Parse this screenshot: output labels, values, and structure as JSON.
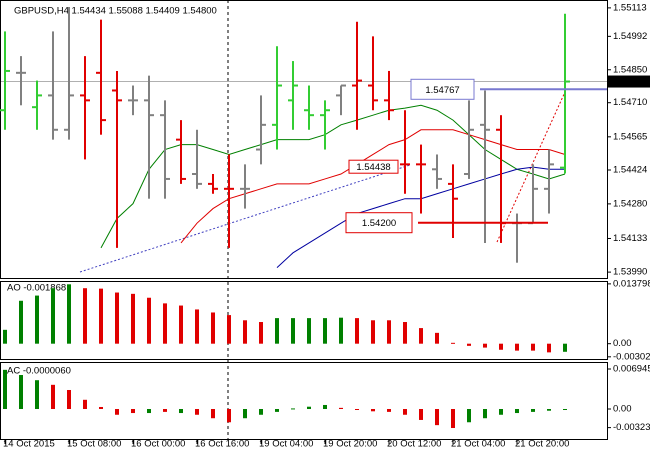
{
  "chart_data": [
    {
      "type": "ohlc",
      "title": "GBPUSD,H4  1.54434 1.55088 1.54409 1.54800",
      "ylim": [
        1.53965,
        1.55138
      ],
      "yticks": [
        1.55113,
        1.54992,
        {
          "value": 1.5485,
          "label": "1.54850"
        },
        {
          "value": 1.5471,
          "label": "1.54710"
        },
        1.54565,
        1.54424,
        {
          "value": 1.5428,
          "label": "1.54280"
        },
        1.54133,
        {
          "value": 1.5399,
          "label": "1.53990"
        }
      ],
      "last_price": {
        "value": 1.548,
        "label": "1.54800"
      },
      "open": [
        1.54678,
        1.54837,
        1.54691,
        1.54741,
        1.54595,
        1.54741,
        1.54837,
        1.54762,
        1.5472,
        1.5472,
        1.54657,
        1.54553,
        1.54407,
        1.54365,
        1.54344,
        1.54344,
        1.54511,
        1.54616,
        1.5472,
        1.54678,
        1.54657,
        1.54741,
        1.54783,
        1.54783,
        1.5472,
        1.54448,
        1.54448,
        1.54427,
        1.54365,
        1.54407,
        1.54616,
        1.54595,
        1.54198,
        1.54198,
        1.54344,
        1.54434
      ],
      "high": [
        1.55013,
        1.54908,
        1.54804,
        1.55013,
        1.55117,
        1.54908,
        1.55063,
        1.54845,
        1.54783,
        1.54825,
        1.5472,
        1.54636,
        1.54595,
        1.54407,
        1.5449,
        1.54448,
        1.54741,
        1.5495,
        1.54887,
        1.54783,
        1.5472,
        1.54783,
        1.55054,
        1.54992,
        1.54845,
        1.54678,
        1.54532,
        1.5449,
        1.54448,
        1.5472,
        1.54762,
        1.54657,
        1.54239,
        1.54448,
        1.54511,
        1.55088
      ],
      "low": [
        1.54595,
        1.54699,
        1.54595,
        1.54553,
        1.54553,
        1.54469,
        1.54574,
        1.54093,
        1.54657,
        1.54302,
        1.54302,
        1.54365,
        1.54344,
        1.54323,
        1.54093,
        1.5426,
        1.54448,
        1.54511,
        1.54595,
        1.54595,
        1.54511,
        1.54657,
        1.54595,
        1.54678,
        1.54636,
        1.54323,
        1.54239,
        1.54344,
        1.54135,
        1.54386,
        1.54114,
        1.54114,
        1.5403,
        1.54198,
        1.54239,
        1.54409
      ],
      "close": [
        1.54845,
        1.54837,
        1.54741,
        1.54595,
        1.54741,
        1.5472,
        1.54636,
        1.5472,
        1.5472,
        1.54657,
        1.54386,
        1.54386,
        1.54365,
        1.54344,
        1.54344,
        1.54344,
        1.54616,
        1.54783,
        1.54783,
        1.54657,
        1.54678,
        1.54783,
        1.54804,
        1.5472,
        1.54678,
        1.54448,
        1.54448,
        1.54386,
        1.54302,
        1.54595,
        1.54595,
        1.54198,
        1.54198,
        1.54344,
        1.54448,
        1.548
      ],
      "colors": [
        "#32cd32",
        "#808080",
        "#32cd32",
        "#808080",
        "#808080",
        "#e00000",
        "#e00000",
        "#e00000",
        "#808080",
        "#808080",
        "#808080",
        "#e00000",
        "#808080",
        "#e00000",
        "#e00000",
        "#808080",
        "#808080",
        "#32cd32",
        "#32cd32",
        "#32cd32",
        "#32cd32",
        "#808080",
        "#e00000",
        "#e00000",
        "#e00000",
        "#e00000",
        "#e00000",
        "#808080",
        "#e00000",
        "#808080",
        "#808080",
        "#e00000",
        "#808080",
        "#808080",
        "#808080",
        "#32cd32"
      ],
      "ma": [
        {
          "color": "#008000",
          "values": [
            null,
            null,
            null,
            null,
            null,
            null,
            1.54093,
            1.54218,
            1.54281,
            1.54427,
            1.54511,
            1.54532,
            1.54532,
            1.54511,
            1.5449,
            1.54511,
            1.54532,
            1.54553,
            1.54553,
            1.54553,
            1.54574,
            1.54616,
            1.54636,
            1.54657,
            1.54678,
            1.54687,
            1.54699,
            1.54678,
            1.54636,
            1.54574,
            1.54511,
            1.54469,
            1.54427,
            1.54407,
            1.54386,
            1.54407
          ]
        },
        {
          "color": "#e00000",
          "values": [
            null,
            null,
            null,
            null,
            null,
            null,
            null,
            null,
            null,
            null,
            null,
            1.54114,
            1.54198,
            1.5426,
            1.54302,
            1.54323,
            1.54344,
            1.54365,
            1.54365,
            1.54365,
            1.54386,
            1.54407,
            1.54448,
            1.5449,
            1.54532,
            1.54553,
            1.54595,
            1.54595,
            1.54595,
            1.54574,
            1.54553,
            1.54532,
            1.54511,
            1.54511,
            1.54511,
            1.5449
          ]
        },
        {
          "color": "#0000a0",
          "values": [
            null,
            null,
            null,
            null,
            null,
            null,
            null,
            null,
            null,
            null,
            null,
            null,
            null,
            null,
            null,
            null,
            null,
            1.54009,
            1.54072,
            1.54114,
            1.54156,
            1.54198,
            1.54239,
            1.5426,
            1.54281,
            1.54302,
            1.54302,
            1.54323,
            1.54344,
            1.54365,
            1.54386,
            1.54407,
            1.54427,
            1.54436,
            1.54427,
            1.54427
          ]
        }
      ],
      "annotations": [
        {
          "value": 1.54767,
          "label": "1.54767",
          "color": "#7878d0"
        },
        {
          "value": 1.54438,
          "label": "1.54438",
          "color": "#e00000"
        },
        {
          "value": 1.542,
          "label": "1.54200",
          "color": "#e00000"
        }
      ]
    },
    {
      "type": "bar",
      "label": "AO -0.001868",
      "ylim": [
        -0.0033,
        0.014
      ],
      "yticks": [
        0.013798,
        {
          "value": 0,
          "label": "0.00"
        },
        -0.003028
      ],
      "values": [
        0.0032,
        0.0099,
        0.0111,
        0.0128,
        0.0137,
        0.0128,
        0.0127,
        0.0118,
        0.0115,
        0.0106,
        0.0093,
        0.0088,
        0.0079,
        0.0072,
        0.0066,
        0.0054,
        0.005,
        0.0059,
        0.0059,
        0.0059,
        0.0059,
        0.006,
        0.0059,
        0.0054,
        0.0054,
        0.005,
        0.0036,
        0.0025,
        0.0002,
        -0.0005,
        -0.0009,
        -0.0014,
        -0.0016,
        -0.0016,
        -0.002,
        -0.001868
      ],
      "colors": [
        "#008000",
        "#008000",
        "#008000",
        "#008000",
        "#008000",
        "#e00000",
        "#e00000",
        "#e00000",
        "#e00000",
        "#e00000",
        "#e00000",
        "#e00000",
        "#e00000",
        "#e00000",
        "#e00000",
        "#e00000",
        "#e00000",
        "#008000",
        "#008000",
        "#008000",
        "#008000",
        "#008000",
        "#e00000",
        "#e00000",
        "#e00000",
        "#e00000",
        "#e00000",
        "#e00000",
        "#e00000",
        "#e00000",
        "#e00000",
        "#e00000",
        "#e00000",
        "#e00000",
        "#e00000",
        "#008000"
      ]
    },
    {
      "type": "bar",
      "label": "AC -0.0000060",
      "ylim": [
        -0.00486,
        0.00764
      ],
      "yticks": [
        0.006945,
        {
          "value": 0,
          "label": "0.00"
        },
        -0.003231
      ],
      "values": [
        0.0068,
        0.0059,
        0.005,
        0.0042,
        0.0033,
        0.0016,
        0.00035,
        -0.001,
        -0.0007,
        -0.0007,
        -0.0005,
        -0.0007,
        -0.001,
        -0.0016,
        -0.0023,
        -0.0016,
        -0.001,
        -0.0005,
        0.0001,
        0.0004,
        0.0007,
        0.0002,
        -0.0001,
        -0.0004,
        -0.0005,
        -0.001,
        -0.0019,
        -0.0028,
        -0.0033,
        -0.0023,
        -0.0016,
        -0.001,
        -0.0007,
        -0.0005,
        -0.0003,
        -6e-06
      ],
      "colors": [
        "#008000",
        "#008000",
        "#008000",
        "#e00000",
        "#e00000",
        "#e00000",
        "#e00000",
        "#e00000",
        "#e00000",
        "#008000",
        "#e00000",
        "#008000",
        "#e00000",
        "#e00000",
        "#e00000",
        "#008000",
        "#008000",
        "#008000",
        "#008000",
        "#008000",
        "#008000",
        "#e00000",
        "#e00000",
        "#e00000",
        "#e00000",
        "#e00000",
        "#e00000",
        "#e00000",
        "#e00000",
        "#008000",
        "#008000",
        "#008000",
        "#008000",
        "#008000",
        "#008000",
        "#008000"
      ],
      "categories": [
        "14 Oct 2015",
        null,
        null,
        null,
        "15 Oct 08:00",
        null,
        null,
        null,
        "16 Oct 00:00",
        null,
        null,
        null,
        "16 Oct 16:00",
        null,
        null,
        null,
        "19 Oct 04:00",
        null,
        null,
        null,
        "19 Oct 20:00",
        null,
        null,
        null,
        "20 Oct 12:00",
        null,
        null,
        null,
        "21 Oct 04:00",
        null,
        null,
        null,
        "21 Oct 20:00",
        null,
        null,
        null
      ]
    }
  ]
}
